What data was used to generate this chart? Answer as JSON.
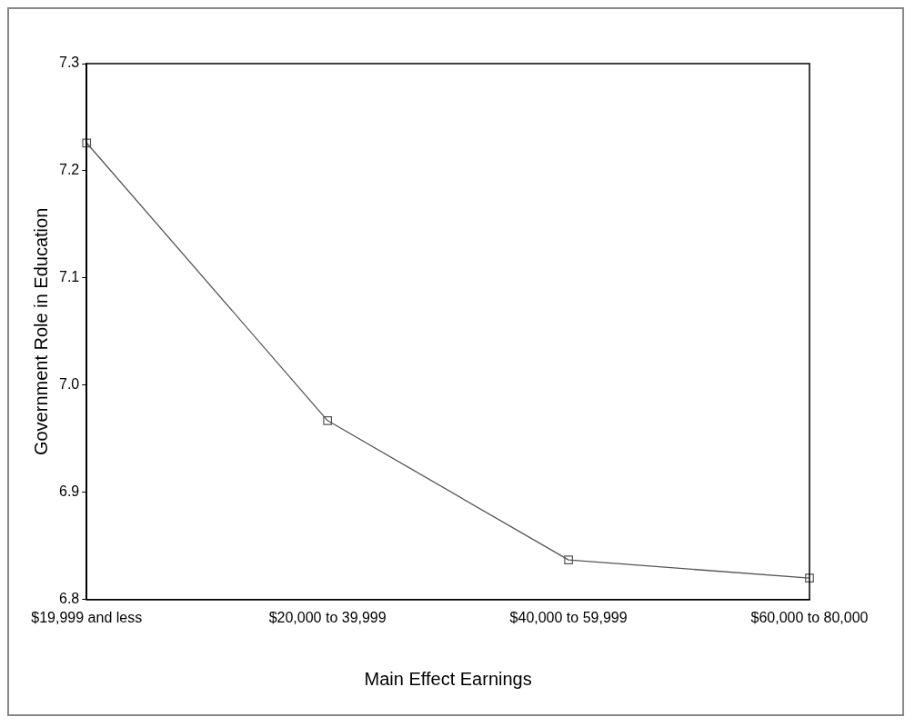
{
  "chart_data": {
    "type": "line",
    "xlabel": "Main Effect Earnings",
    "ylabel": "Government Role in Education",
    "categories": [
      "$19,999 and less",
      "$20,000 to 39,999",
      "$40,000 to 59,999",
      "$60,000 to 80,000"
    ],
    "series": [
      {
        "color": "#555555",
        "values": [
          7.226,
          6.967,
          6.837,
          6.82
        ]
      }
    ],
    "ylim": [
      6.8,
      7.3
    ],
    "yticks": [
      6.8,
      6.9,
      {
        "value": 7,
        "label": "7.0"
      },
      7.1,
      7.2,
      7.3
    ],
    "grid": false,
    "legend": false,
    "marker": "square",
    "line_style": "solid"
  }
}
